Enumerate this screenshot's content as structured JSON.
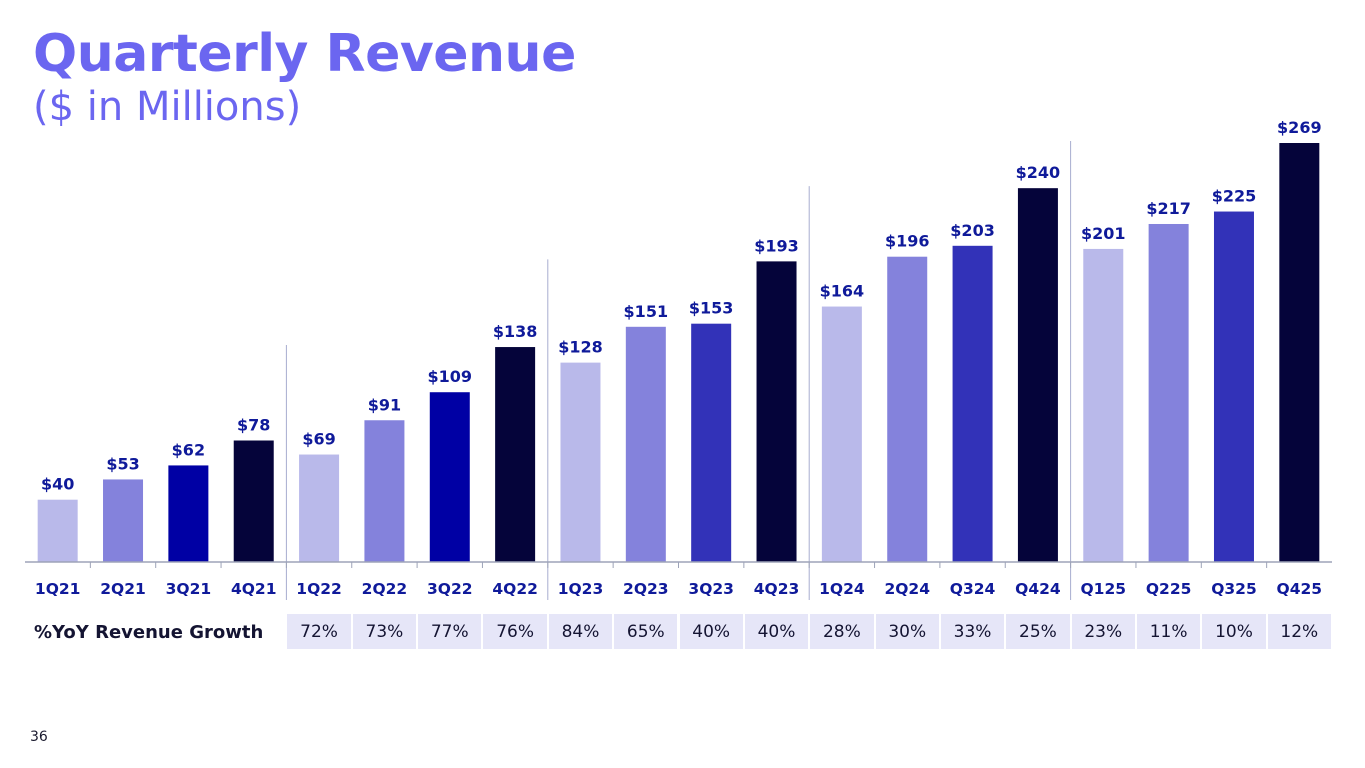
{
  "title": "Quarterly Revenue",
  "subtitle": "($ in Millions)",
  "page_number": "36",
  "colors": {
    "title": "#6b66f0",
    "label": "#0f1a9a",
    "axis": "#9da3b8",
    "separator": "#a8add0",
    "q1": "#b9b9ea",
    "q2": "#8482dc",
    "q3_2021_2022": "#0000a4",
    "q3_later": "#3232b8",
    "q4": "#05043a",
    "growth_bg": "#e6e6f8"
  },
  "chart_data": {
    "type": "bar",
    "title": "Quarterly Revenue",
    "subtitle": "($ in Millions)",
    "xlabel": "",
    "ylabel": "",
    "ylim": [
      0,
      280
    ],
    "grid": false,
    "categories": [
      "1Q21",
      "2Q21",
      "3Q21",
      "4Q21",
      "1Q22",
      "2Q22",
      "3Q22",
      "4Q22",
      "1Q23",
      "2Q23",
      "3Q23",
      "4Q23",
      "1Q24",
      "2Q24",
      "Q324",
      "Q424",
      "Q125",
      "Q225",
      "Q325",
      "Q425"
    ],
    "values": [
      40,
      53,
      62,
      78,
      69,
      91,
      109,
      138,
      128,
      151,
      153,
      193,
      164,
      196,
      203,
      240,
      201,
      217,
      225,
      269
    ],
    "value_labels": [
      "$40",
      "$53",
      "$62",
      "$78",
      "$69",
      "$91",
      "$109",
      "$138",
      "$128",
      "$151",
      "$153",
      "$193",
      "$164",
      "$196",
      "$203",
      "$240",
      "$201",
      "$217",
      "$225",
      "$269"
    ],
    "bar_color_keys": [
      "q1",
      "q2",
      "q3_2021_2022",
      "q4",
      "q1",
      "q2",
      "q3_2021_2022",
      "q4",
      "q1",
      "q2",
      "q3_later",
      "q4",
      "q1",
      "q2",
      "q3_later",
      "q4",
      "q1",
      "q2",
      "q3_later",
      "q4"
    ]
  },
  "growth": {
    "label": "%YoY Revenue Growth",
    "values": [
      "72%",
      "73%",
      "77%",
      "76%",
      "84%",
      "65%",
      "40%",
      "40%",
      "28%",
      "30%",
      "33%",
      "25%",
      "23%",
      "11%",
      "10%",
      "12%"
    ]
  }
}
